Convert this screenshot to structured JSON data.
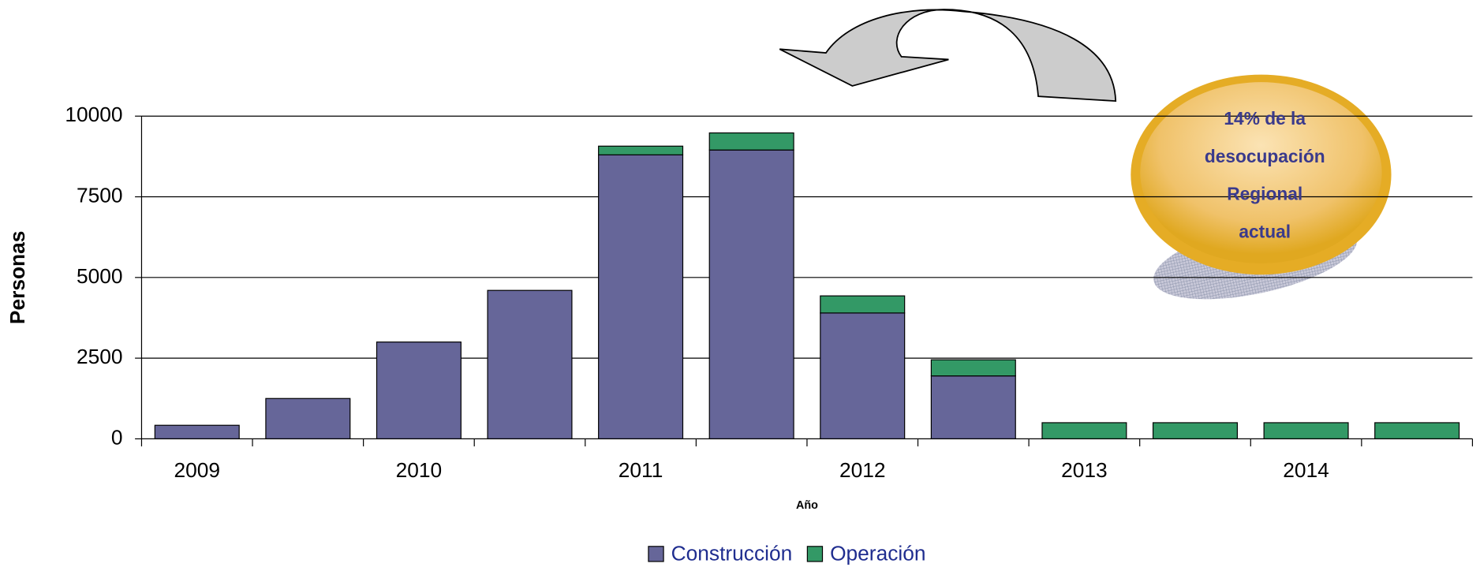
{
  "chart_data": {
    "type": "stacked_bar",
    "categories": [
      "2009",
      null,
      "2010",
      null,
      "2011",
      null,
      "2012",
      null,
      "2013",
      null,
      "2014",
      null
    ],
    "series": [
      {
        "name": "Construcción",
        "color": "#666699",
        "values": [
          420,
          1250,
          3000,
          4600,
          8800,
          8950,
          3900,
          1950,
          0,
          0,
          0,
          0
        ]
      },
      {
        "name": "Operación",
        "color": "#339966",
        "values": [
          0,
          0,
          0,
          0,
          270,
          530,
          530,
          500,
          500,
          500,
          500,
          500
        ]
      }
    ],
    "ylim": [
      0,
      10000
    ],
    "yticks": [
      0,
      2500,
      5000,
      7500,
      10000
    ],
    "grid": true,
    "y_label": "Personas",
    "x_label": "Año",
    "legend": "bottom",
    "annotation": [
      "14% de la",
      "desocupación",
      "Regional",
      "actual"
    ]
  }
}
